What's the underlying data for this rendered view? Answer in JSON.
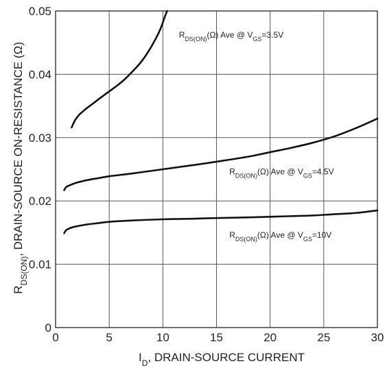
{
  "chart_data": {
    "type": "line",
    "title": "",
    "xlabel": {
      "main": "I",
      "sub": "D",
      "rest": ", DRAIN-SOURCE CURRENT"
    },
    "ylabel": {
      "main": "R",
      "sub": "DS(ON)",
      "rest": ", DRAIN-SOURCE ON-RESISTANCE (Ω)"
    },
    "xlim": [
      0,
      30
    ],
    "ylim": [
      0,
      0.05
    ],
    "xticks": [
      0,
      5,
      10,
      15,
      20,
      25,
      30
    ],
    "yticks": [
      0,
      0.01,
      0.02,
      0.03,
      0.04,
      0.05
    ],
    "xtick_labels": [
      "0",
      "5",
      "10",
      "15",
      "20",
      "25",
      "30"
    ],
    "ytick_labels": [
      "0",
      "0.01",
      "0.02",
      "0.03",
      "0.04",
      "0.05"
    ],
    "grid": true,
    "series": [
      {
        "name": "RDS(ON)(Ω) Ave @ VGS=3.5V",
        "x": [
          1.5,
          1.8,
          2.2,
          2.8,
          3.5,
          4.2,
          5.0,
          5.8,
          6.5,
          7.2,
          7.8,
          8.3,
          8.8,
          9.2,
          9.6,
          9.9,
          10.1,
          10.3,
          10.4
        ],
        "y": [
          0.0316,
          0.0327,
          0.0336,
          0.0345,
          0.0354,
          0.0363,
          0.0373,
          0.0383,
          0.0393,
          0.0405,
          0.0416,
          0.0427,
          0.044,
          0.0452,
          0.0465,
          0.0477,
          0.0487,
          0.0496,
          0.05
        ]
      },
      {
        "name": "RDS(ON)(Ω) Ave @ VGS=4.5V",
        "x": [
          0.8,
          1,
          1.5,
          2,
          3,
          4,
          5,
          7,
          10,
          13,
          15,
          18,
          20,
          22,
          24,
          26,
          28,
          30
        ],
        "y": [
          0.0217,
          0.0222,
          0.0226,
          0.0229,
          0.0233,
          0.0236,
          0.0239,
          0.0243,
          0.025,
          0.0257,
          0.0262,
          0.027,
          0.0277,
          0.0284,
          0.0292,
          0.0302,
          0.0315,
          0.033
        ]
      },
      {
        "name": "RDS(ON)(Ω) Ave @ VGS=10V",
        "x": [
          0.8,
          1,
          1.5,
          2,
          3,
          4,
          5,
          7,
          10,
          13,
          15,
          18,
          20,
          22,
          24,
          26,
          28,
          30
        ],
        "y": [
          0.0149,
          0.0154,
          0.0158,
          0.016,
          0.0163,
          0.0165,
          0.0167,
          0.0169,
          0.0171,
          0.0172,
          0.0173,
          0.0174,
          0.0175,
          0.0176,
          0.0177,
          0.0179,
          0.0181,
          0.0185
        ]
      }
    ],
    "annotations": [
      {
        "series": 0,
        "main": "R",
        "sub1": "DS(ON)",
        "mid": "(Ω) Ave @ V",
        "sub2": "GS",
        "tail": "=3.5V",
        "at": [
          11.5,
          0.0458
        ]
      },
      {
        "series": 1,
        "main": "R",
        "sub1": "DS(ON)",
        "mid": "(Ω) Ave @ V",
        "sub2": "GS",
        "tail": "=4.5V",
        "at": [
          16.2,
          0.0242
        ]
      },
      {
        "series": 2,
        "main": "R",
        "sub1": "DS(ON)",
        "mid": "(Ω) Ave @ V",
        "sub2": "GS",
        "tail": "=10V",
        "at": [
          16.2,
          0.0142
        ]
      }
    ]
  }
}
